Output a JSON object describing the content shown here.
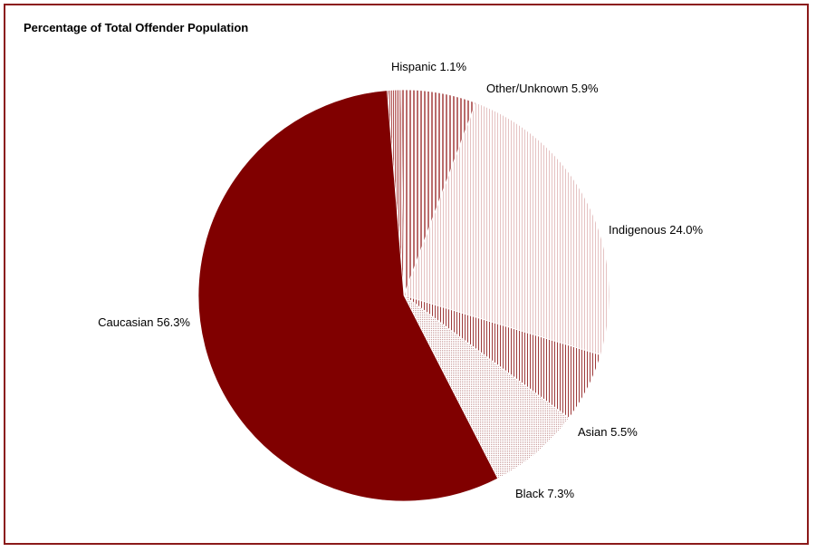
{
  "chart_data": {
    "type": "pie",
    "title": "Percentage of Total Offender Population",
    "slices": [
      {
        "label": "Hispanic",
        "value": 1.1,
        "text": "Hispanic 1.1%"
      },
      {
        "label": "Other/Unknown",
        "value": 5.9,
        "text": "Other/Unknown 5.9%"
      },
      {
        "label": "Indigenous",
        "value": 24.0,
        "text": "Indigenous 24.0%"
      },
      {
        "label": "Asian",
        "value": 5.5,
        "text": "Asian 5.5%"
      },
      {
        "label": "Black",
        "value": 7.3,
        "text": "Black 7.3%"
      },
      {
        "label": "Caucasian",
        "value": 56.3,
        "text": "Caucasian 56.3%"
      }
    ],
    "legend": "none"
  },
  "colors": {
    "frame": "#8b1a1a",
    "caucasian": "#800000",
    "indigenous_pattern": "#e8c8c8",
    "asian_pattern": "#9e3a3a",
    "black_pattern": "#c89a9a",
    "other_pattern": "#a84848",
    "hispanic_pattern": "#b05050"
  }
}
